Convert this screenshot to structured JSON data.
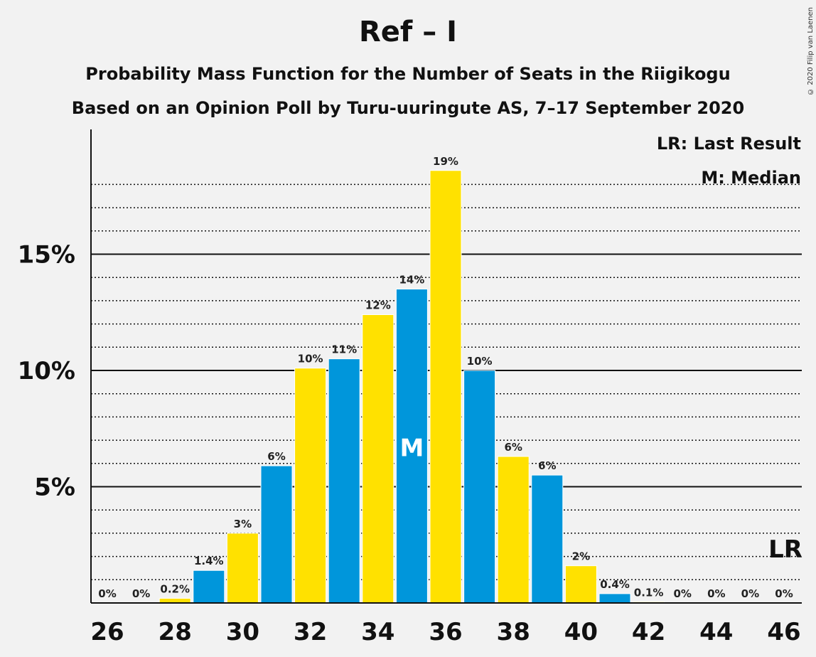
{
  "chart_data": {
    "type": "bar",
    "title": "Ref – I",
    "subtitle": "Probability Mass Function for the Number of Seats in the Riigikogu",
    "subtitle2": "Based on an Opinion Poll by Turu-uuringute AS, 7–17 September 2020",
    "copyright": "© 2020 Filip van Laenen",
    "legend": {
      "last_result": "LR: Last Result",
      "median": "M: Median",
      "placement": "top-right"
    },
    "x": [
      26,
      27,
      28,
      29,
      30,
      31,
      32,
      33,
      34,
      35,
      36,
      37,
      38,
      39,
      40,
      41,
      42,
      43,
      44,
      45,
      46
    ],
    "values": [
      0,
      0,
      0.2,
      1.4,
      3.0,
      5.9,
      10.1,
      10.5,
      12.4,
      13.5,
      18.6,
      10.0,
      6.3,
      5.5,
      1.6,
      0.4,
      0.05,
      0,
      0,
      0,
      0
    ],
    "labels": [
      "0%",
      "0%",
      "0.2%",
      "1.4%",
      "3%",
      "6%",
      "10%",
      "11%",
      "12%",
      "14%",
      "19%",
      "10%",
      "6%",
      "6%",
      "2%",
      "0.4%",
      "0.1%",
      "0%",
      "0%",
      "0%",
      "0%"
    ],
    "x_tick_labels": [
      "26",
      "28",
      "30",
      "32",
      "34",
      "36",
      "38",
      "40",
      "42",
      "44",
      "46"
    ],
    "y_ticks": [
      {
        "value": 5,
        "label": "5%"
      },
      {
        "value": 10,
        "label": "10%"
      },
      {
        "value": 15,
        "label": "15%"
      }
    ],
    "ylim": [
      0,
      20.5
    ],
    "median_seat": 35,
    "median_marker": "M",
    "last_result_seat": 46,
    "last_result_marker": "LR",
    "grid": true,
    "colors": {
      "blue": "#0096DB",
      "yellow": "#FFE100",
      "axis": "#111111"
    }
  }
}
